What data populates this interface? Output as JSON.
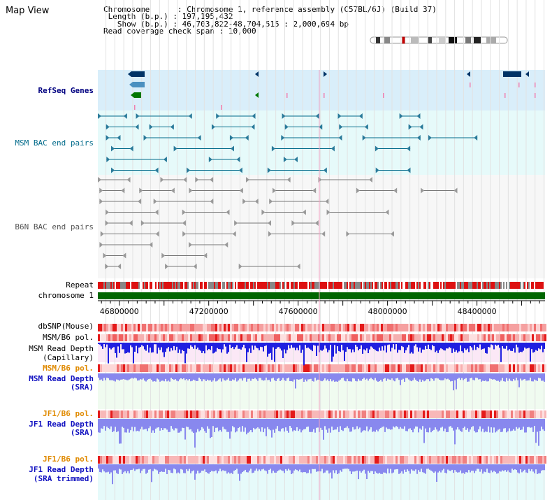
{
  "page": {
    "title": "Map View"
  },
  "info": {
    "chromosome_label": "Chromosome",
    "chromosome_value": "Chromosome 1, reference assembly (C57BL/6J) (Build 37)",
    "length_label": "Length (b.p.)",
    "length_value": "197,195,432",
    "show_label": "Show (b.p.)",
    "show_value": "46,703,822-48,704,515 : 2,000,694 bp",
    "coverage_label": "Read coverage check span",
    "coverage_value": "10,000"
  },
  "tracks": {
    "refseq": "RefSeq Genes",
    "msm_bac": "MSM BAC end pairs",
    "b6n_bac": "B6N BAC end pairs",
    "repeat": "Repeat",
    "chromosome": "chromosome 1",
    "dbsnp": "dbSNP(Mouse)",
    "msm_b6_pol_1": "MSM/B6 pol.",
    "msm_read_depth_cap_1": "MSM Read Depth",
    "msm_read_depth_cap_2": "(Capillary)",
    "msm_b6_pol_2": "MSM/B6 pol.",
    "msm_read_depth_sra_1": "MSM Read Depth",
    "msm_read_depth_sra_2": "(SRA)",
    "jf1_b6_pol_1": "JF1/B6 pol.",
    "jf1_read_depth_sra_1": "JF1 Read Depth",
    "jf1_read_depth_sra_2": "(SRA)",
    "jf1_b6_pol_2": "JF1/B6 pol.",
    "jf1_read_depth_trim_1": "JF1 Read Depth",
    "jf1_read_depth_trim_2": "(SRA trimmed)"
  },
  "axis": {
    "ticks": [
      {
        "value": 46800000,
        "label": "46800000"
      },
      {
        "value": 47200000,
        "label": "47200000"
      },
      {
        "value": 47600000,
        "label": "47600000"
      },
      {
        "value": 48000000,
        "label": "48000000"
      },
      {
        "value": 48400000,
        "label": "48400000"
      }
    ],
    "start": 46703822,
    "end": 48704515
  },
  "colors": {
    "refseq_bg": "#d9eefa",
    "msm_bac_bg": "#e6fafa",
    "b6n_bg": "#f7f7f7",
    "chromosome": "#006600",
    "repeat_red": "#dd1111",
    "repeat_grey": "#888888",
    "gene_navy": "#003366",
    "gene_blue": "#4a90c0",
    "gene_green": "#007700",
    "msm_line": "#006a8a",
    "b6n_line": "#777777",
    "depth_blue": "#2020e0",
    "depth_light": "#8888ee"
  }
}
